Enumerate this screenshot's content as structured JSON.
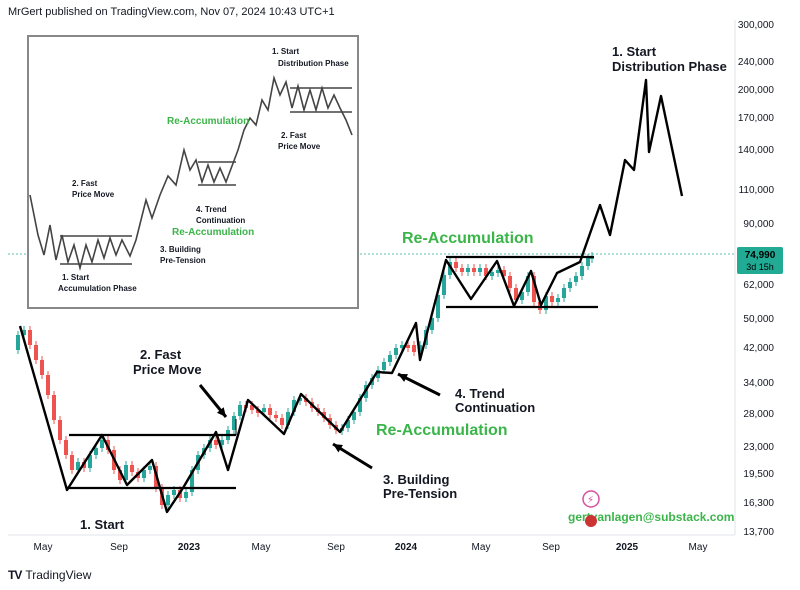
{
  "header": {
    "text": "MrGert published on TradingView.com, Nov 07, 2024 10:43 UTC+1"
  },
  "footer": {
    "logo": "TV",
    "brand": "TradingView"
  },
  "chart_data": {
    "type": "line",
    "title": "",
    "y_scale": "log",
    "y_ticks": [
      "300,000",
      "240,000",
      "200,000",
      "170,000",
      "140,000",
      "110,000",
      "90,000",
      "74,990",
      "62,000",
      "50,000",
      "42,000",
      "34,000",
      "28,000",
      "23,000",
      "19,500",
      "16,300",
      "13,700"
    ],
    "x_ticks": [
      "May",
      "Sep",
      "2023",
      "May",
      "Sep",
      "2024",
      "May",
      "Sep",
      "2025",
      "May"
    ],
    "price_badge": {
      "value": "74,990",
      "sub": "3d 15h",
      "color": "#22ab94"
    },
    "annotations": {
      "fast_move": "2. Fast\nPrice Move",
      "reaccum1": "Re-Accumulation",
      "trend_cont": "4. Trend\nContinuation",
      "building": "3. Building\nPre-Tension",
      "start_accum": "1. Start",
      "reaccum_top": "Re-Accumulation",
      "distribution": "1. Start\nDistribution Phase",
      "email": "gertvanlagen@substack.com"
    },
    "inset": {
      "start_distribution": "1. Start\nDistribution Phase",
      "reaccum_top": "Re-Accumulation",
      "fast_move_right": "2. Fast\nPrice Move",
      "fast_move_left": "2. Fast\nPrice Move",
      "trend_cont": "4. Trend\nContinuation",
      "reaccum_bottom": "Re-Accumulation",
      "building": "3. Building\nPre-Tension",
      "start_accum": "1. Start\nAccumulation Phase"
    },
    "colors": {
      "up": "#26a69a",
      "down": "#ef5350",
      "line": "#000000",
      "green_text": "#3bb54a"
    }
  }
}
